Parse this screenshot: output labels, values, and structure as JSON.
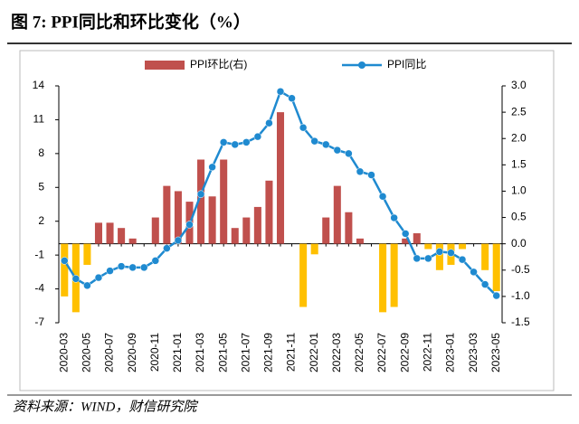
{
  "header": {
    "title": "图 7:  PPI同比和环比变化（%）"
  },
  "chart_data": {
    "type": "bar-line",
    "categories": [
      "2020-03",
      null,
      "2020-05",
      null,
      "2020-07",
      null,
      "2020-09",
      null,
      "2020-11",
      null,
      "2021-01",
      null,
      "2021-03",
      null,
      "2021-05",
      null,
      "2021-07",
      null,
      "2021-09",
      null,
      "2021-11",
      null,
      "2022-01",
      null,
      "2022-03",
      null,
      "2022-05",
      null,
      "2022-07",
      null,
      "2022-09",
      null,
      "2022-11",
      null,
      "2023-01",
      null,
      "2023-03",
      null,
      "2023-05"
    ],
    "series": [
      {
        "name": "PPI环比(右)",
        "type": "bar",
        "axis": "y2",
        "color": "#c0504d",
        "negative_color": "#ffc000",
        "values": [
          -1.0,
          -1.3,
          -0.4,
          0.4,
          0.4,
          0.3,
          0.1,
          0.0,
          0.5,
          1.1,
          1.0,
          0.8,
          1.6,
          0.9,
          1.6,
          0.3,
          0.5,
          0.7,
          1.2,
          2.5,
          0.0,
          -1.2,
          -0.2,
          0.5,
          1.1,
          0.6,
          0.1,
          0.0,
          -1.3,
          -1.2,
          0.1,
          0.2,
          -0.1,
          -0.5,
          -0.4,
          -0.1,
          0.0,
          -0.5,
          -0.9
        ]
      },
      {
        "name": "PPI同比",
        "type": "line",
        "color": "#1f8ad0",
        "values": [
          -1.5,
          -3.1,
          -3.7,
          -3.0,
          -2.4,
          -2.0,
          -2.1,
          -2.1,
          -1.5,
          -0.4,
          0.3,
          1.7,
          4.4,
          6.8,
          9.0,
          8.8,
          9.0,
          9.5,
          10.7,
          13.5,
          12.9,
          10.3,
          9.1,
          8.8,
          8.3,
          8.0,
          6.4,
          6.1,
          4.2,
          2.3,
          0.9,
          -1.3,
          -1.3,
          -0.7,
          -0.8,
          -1.4,
          -2.5,
          -3.6,
          -4.6
        ]
      }
    ],
    "ylim": [
      -7,
      14
    ],
    "yticks": [
      14,
      11,
      8,
      5,
      2,
      -1,
      -4,
      -7
    ],
    "y2lim": [
      -1.5,
      3.0
    ],
    "y2ticks": [
      {
        "value": 3,
        "label": "3.0"
      },
      2.5,
      {
        "value": 2,
        "label": "2.0"
      },
      1.5,
      {
        "value": 1,
        "label": "1.0"
      },
      0.5,
      {
        "value": 0,
        "label": "0.0"
      },
      -0.5,
      {
        "value": -1,
        "label": "-1.0"
      },
      -1.5
    ],
    "legend": "top"
  },
  "footer": {
    "source": "资料来源：WIND，财信研究院"
  }
}
